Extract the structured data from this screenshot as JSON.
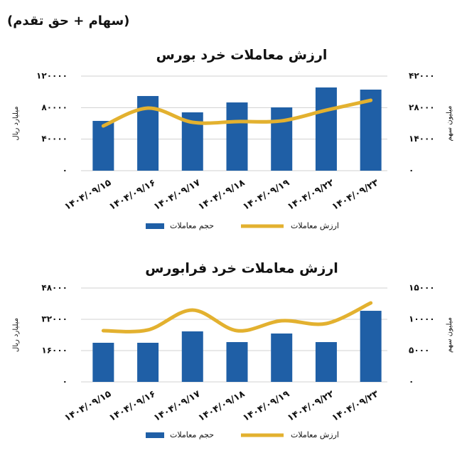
{
  "header": {
    "title": "(سهام + حق تقدم)"
  },
  "chart_data": [
    {
      "type": "bar_line",
      "title": "ارزش معاملات خرد بورس",
      "categories": [
        "۱۴۰۴/۰۹/۱۵",
        "۱۴۰۴/۰۹/۱۶",
        "۱۴۰۴/۰۹/۱۷",
        "۱۴۰۴/۰۹/۱۸",
        "۱۴۰۴/۰۹/۱۹",
        "۱۴۰۴/۰۹/۲۲",
        "۱۴۰۴/۰۹/۲۳"
      ],
      "series": [
        {
          "name": "حجم معاملات",
          "type": "bar",
          "axis": "y2",
          "color": "#1f5fa6",
          "values": [
            22100,
            33150,
            25900,
            30300,
            28100,
            36950,
            36000
          ]
        },
        {
          "name": "ارزش معاملات",
          "type": "line",
          "color": "#e3b12f",
          "values": [
            56800,
            79400,
            61400,
            62300,
            63200,
            76700,
            89300
          ]
        }
      ],
      "y_label": "میلیارد ریال",
      "y2_label": "میلیون سهم",
      "ylim": [
        0,
        120000
      ],
      "yticks": [
        {
          "value": 0,
          "label": "۰"
        },
        {
          "value": 40000,
          "label": "۴۰۰۰۰"
        },
        {
          "value": 80000,
          "label": "۸۰۰۰۰"
        },
        {
          "value": 120000,
          "label": "۱۲۰۰۰۰"
        }
      ],
      "y2lim": [
        0,
        42000
      ],
      "y2ticks": [
        {
          "value": 0,
          "label": "۰"
        },
        {
          "value": 14000,
          "label": "۱۴۰۰۰"
        },
        {
          "value": 28000,
          "label": "۲۸۰۰۰"
        },
        {
          "value": 42000,
          "label": "۴۲۰۰۰"
        }
      ],
      "grid": true
    },
    {
      "type": "bar_line",
      "title": "ارزش معاملات خرد فرابورس",
      "categories": [
        "۱۴۰۴/۰۹/۱۵",
        "۱۴۰۴/۰۹/۱۶",
        "۱۴۰۴/۰۹/۱۷",
        "۱۴۰۴/۰۹/۱۸",
        "۱۴۰۴/۰۹/۱۹",
        "۱۴۰۴/۰۹/۲۲",
        "۱۴۰۴/۰۹/۲۳"
      ],
      "series": [
        {
          "name": "حجم معاملات",
          "type": "bar",
          "axis": "y2",
          "color": "#1f5fa6",
          "values": [
            6250,
            6250,
            8070,
            6360,
            7730,
            6360,
            11360
          ]
        },
        {
          "name": "ارزش معاملات",
          "type": "line",
          "color": "#e3b12f",
          "values": [
            26180,
            26550,
            36730,
            26180,
            31270,
            29820,
            40360
          ]
        }
      ],
      "y_label": "میلیارد ریال",
      "y2_label": "میلیون سهم",
      "ylim": [
        0,
        48000
      ],
      "yticks": [
        {
          "value": 0,
          "label": "۰"
        },
        {
          "value": 16000,
          "label": "۱۶۰۰۰"
        },
        {
          "value": 32000,
          "label": "۳۲۰۰۰"
        },
        {
          "value": 48000,
          "label": "۴۸۰۰۰"
        }
      ],
      "y2lim": [
        0,
        15000
      ],
      "y2ticks": [
        {
          "value": 0,
          "label": "۰"
        },
        {
          "value": 5000,
          "label": "۵۰۰۰"
        },
        {
          "value": 10000,
          "label": "۱۰۰۰۰"
        },
        {
          "value": 15000,
          "label": "۱۵۰۰۰"
        }
      ],
      "grid": true
    }
  ]
}
